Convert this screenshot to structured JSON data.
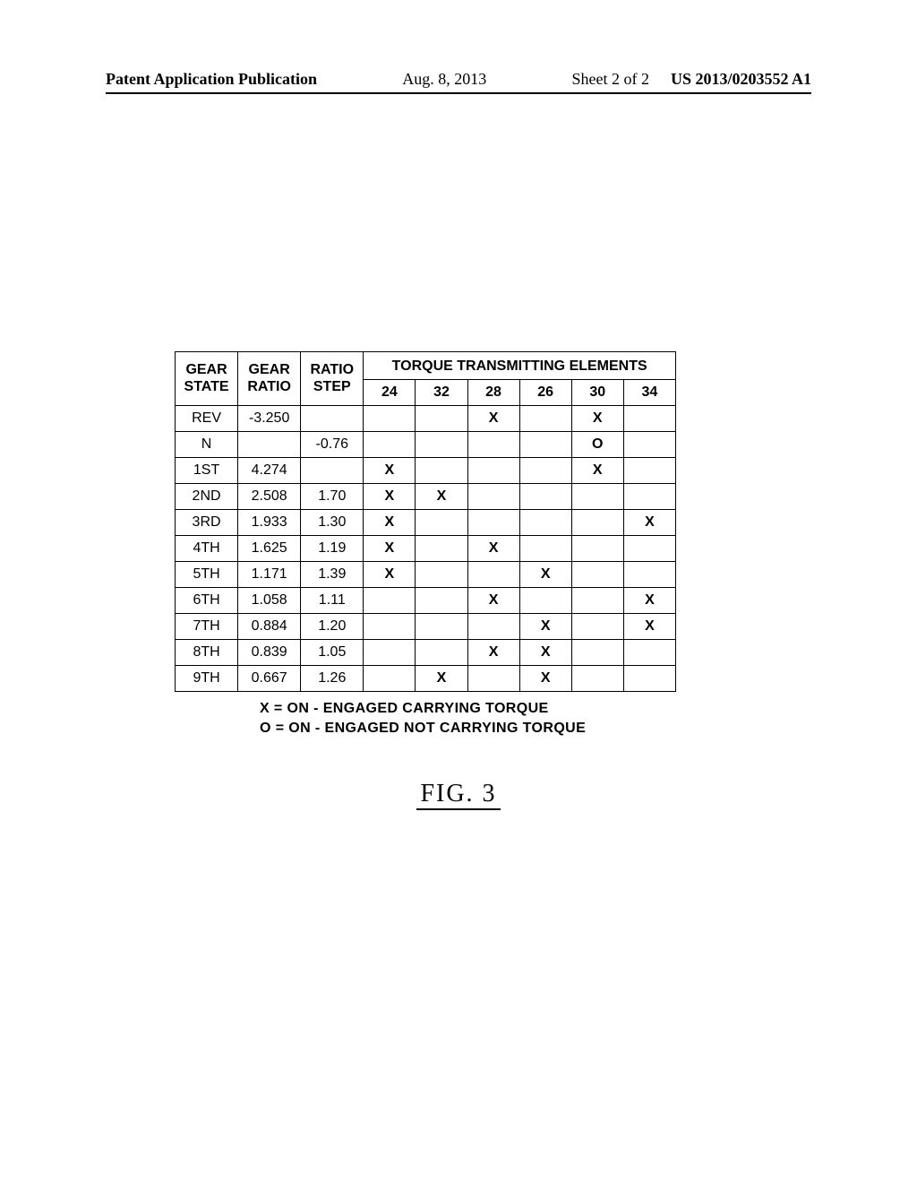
{
  "header": {
    "publication_label": "Patent Application Publication",
    "date": "Aug. 8, 2013",
    "sheet": "Sheet 2 of 2",
    "pub_number": "US 2013/0203552 A1"
  },
  "table": {
    "type": "table",
    "col_headers": {
      "state": "GEAR\nSTATE",
      "ratio": "GEAR\nRATIO",
      "step": "RATIO\nSTEP",
      "elements_title": "TORQUE  TRANSMITTING  ELEMENTS",
      "elements": [
        "24",
        "32",
        "28",
        "26",
        "30",
        "34"
      ]
    },
    "rows": [
      {
        "state": "REV",
        "ratio": "-3.250",
        "step": "",
        "e": [
          "",
          "",
          "X",
          "",
          "X",
          ""
        ]
      },
      {
        "state": "N",
        "ratio": "",
        "step": "-0.76",
        "e": [
          "",
          "",
          "",
          "",
          "O",
          ""
        ]
      },
      {
        "state": "1ST",
        "ratio": "4.274",
        "step": "",
        "e": [
          "X",
          "",
          "",
          "",
          "X",
          ""
        ]
      },
      {
        "state": "2ND",
        "ratio": "2.508",
        "step": "1.70",
        "e": [
          "X",
          "X",
          "",
          "",
          "",
          ""
        ]
      },
      {
        "state": "3RD",
        "ratio": "1.933",
        "step": "1.30",
        "e": [
          "X",
          "",
          "",
          "",
          "",
          "X"
        ]
      },
      {
        "state": "4TH",
        "ratio": "1.625",
        "step": "1.19",
        "e": [
          "X",
          "",
          "X",
          "",
          "",
          ""
        ]
      },
      {
        "state": "5TH",
        "ratio": "1.171",
        "step": "1.39",
        "e": [
          "X",
          "",
          "",
          "X",
          "",
          ""
        ]
      },
      {
        "state": "6TH",
        "ratio": "1.058",
        "step": "1.11",
        "e": [
          "",
          "",
          "X",
          "",
          "",
          "X"
        ]
      },
      {
        "state": "7TH",
        "ratio": "0.884",
        "step": "1.20",
        "e": [
          "",
          "",
          "",
          "X",
          "",
          "X"
        ]
      },
      {
        "state": "8TH",
        "ratio": "0.839",
        "step": "1.05",
        "e": [
          "",
          "",
          "X",
          "X",
          "",
          ""
        ]
      },
      {
        "state": "9TH",
        "ratio": "0.667",
        "step": "1.26",
        "e": [
          "",
          "X",
          "",
          "X",
          "",
          ""
        ]
      }
    ],
    "font_size": 16,
    "border_color": "#000000",
    "background_color": "#ffffff"
  },
  "legend": {
    "line1": "X = ON  -  ENGAGED  CARRYING  TORQUE",
    "line2": "O = ON  -  ENGAGED  NOT  CARRYING  TORQUE"
  },
  "figure_label": "FIG.  3"
}
